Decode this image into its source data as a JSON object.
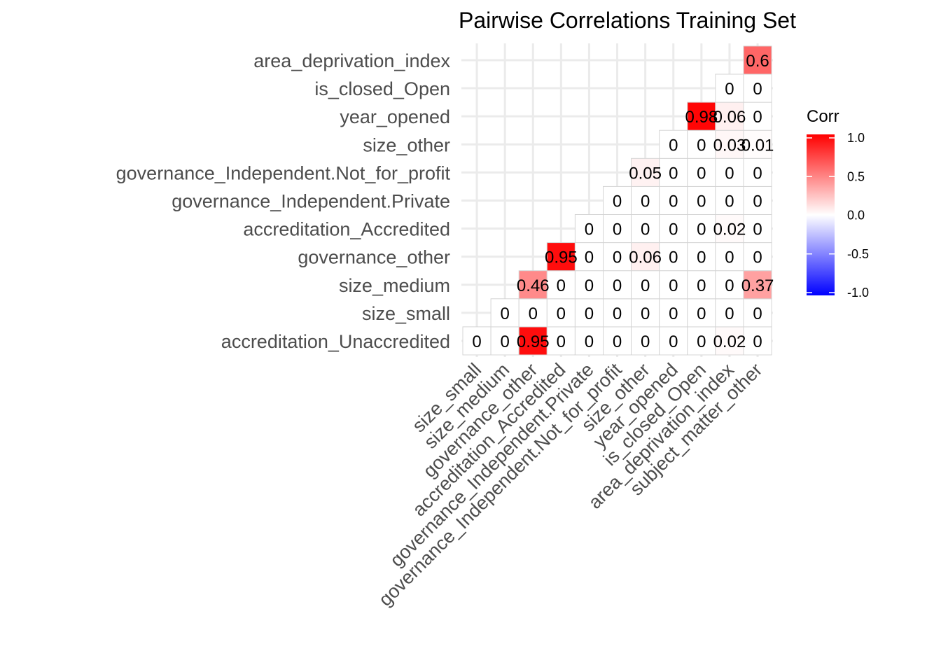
{
  "chart_data": {
    "type": "heatmap",
    "title": "Pairwise Correlations Training Set",
    "x_categories": [
      "size_small",
      "size_medium",
      "governance_other",
      "accreditation_Accredited",
      "governance_Independent.Private",
      "governance_Independent.Not_for_profit",
      "size_other",
      "year_opened",
      "is_closed_Open",
      "area_deprivation_index",
      "subject_matter_other"
    ],
    "y_categories": [
      "accreditation_Unaccredited",
      "size_small",
      "size_medium",
      "governance_other",
      "accreditation_Accredited",
      "governance_Independent.Private",
      "governance_Independent.Not_for_profit",
      "size_other",
      "year_opened",
      "is_closed_Open",
      "area_deprivation_index"
    ],
    "cells": [
      {
        "x": "size_small",
        "y": "accreditation_Unaccredited",
        "value": 0,
        "label": "0"
      },
      {
        "x": "size_medium",
        "y": "accreditation_Unaccredited",
        "value": 0,
        "label": "0"
      },
      {
        "x": "governance_other",
        "y": "accreditation_Unaccredited",
        "value": 0.95,
        "label": "0.95"
      },
      {
        "x": "accreditation_Accredited",
        "y": "accreditation_Unaccredited",
        "value": 0,
        "label": "0"
      },
      {
        "x": "governance_Independent.Private",
        "y": "accreditation_Unaccredited",
        "value": 0,
        "label": "0"
      },
      {
        "x": "governance_Independent.Not_for_profit",
        "y": "accreditation_Unaccredited",
        "value": 0,
        "label": "0"
      },
      {
        "x": "size_other",
        "y": "accreditation_Unaccredited",
        "value": 0,
        "label": "0"
      },
      {
        "x": "year_opened",
        "y": "accreditation_Unaccredited",
        "value": 0,
        "label": "0"
      },
      {
        "x": "is_closed_Open",
        "y": "accreditation_Unaccredited",
        "value": 0,
        "label": "0"
      },
      {
        "x": "area_deprivation_index",
        "y": "accreditation_Unaccredited",
        "value": 0.02,
        "label": "0.02"
      },
      {
        "x": "subject_matter_other",
        "y": "accreditation_Unaccredited",
        "value": 0,
        "label": "0"
      },
      {
        "x": "size_medium",
        "y": "size_small",
        "value": 0,
        "label": "0"
      },
      {
        "x": "governance_other",
        "y": "size_small",
        "value": 0,
        "label": "0"
      },
      {
        "x": "accreditation_Accredited",
        "y": "size_small",
        "value": 0,
        "label": "0"
      },
      {
        "x": "governance_Independent.Private",
        "y": "size_small",
        "value": 0,
        "label": "0"
      },
      {
        "x": "governance_Independent.Not_for_profit",
        "y": "size_small",
        "value": 0,
        "label": "0"
      },
      {
        "x": "size_other",
        "y": "size_small",
        "value": 0,
        "label": "0"
      },
      {
        "x": "year_opened",
        "y": "size_small",
        "value": 0,
        "label": "0"
      },
      {
        "x": "is_closed_Open",
        "y": "size_small",
        "value": 0,
        "label": "0"
      },
      {
        "x": "area_deprivation_index",
        "y": "size_small",
        "value": 0,
        "label": "0"
      },
      {
        "x": "subject_matter_other",
        "y": "size_small",
        "value": 0,
        "label": "0"
      },
      {
        "x": "governance_other",
        "y": "size_medium",
        "value": 0.46,
        "label": "0.46"
      },
      {
        "x": "accreditation_Accredited",
        "y": "size_medium",
        "value": 0,
        "label": "0"
      },
      {
        "x": "governance_Independent.Private",
        "y": "size_medium",
        "value": 0,
        "label": "0"
      },
      {
        "x": "governance_Independent.Not_for_profit",
        "y": "size_medium",
        "value": 0,
        "label": "0"
      },
      {
        "x": "size_other",
        "y": "size_medium",
        "value": 0,
        "label": "0"
      },
      {
        "x": "year_opened",
        "y": "size_medium",
        "value": 0,
        "label": "0"
      },
      {
        "x": "is_closed_Open",
        "y": "size_medium",
        "value": 0,
        "label": "0"
      },
      {
        "x": "area_deprivation_index",
        "y": "size_medium",
        "value": 0,
        "label": "0"
      },
      {
        "x": "subject_matter_other",
        "y": "size_medium",
        "value": 0.37,
        "label": "0.37"
      },
      {
        "x": "accreditation_Accredited",
        "y": "governance_other",
        "value": 0.95,
        "label": "0.95"
      },
      {
        "x": "governance_Independent.Private",
        "y": "governance_other",
        "value": 0,
        "label": "0"
      },
      {
        "x": "governance_Independent.Not_for_profit",
        "y": "governance_other",
        "value": 0,
        "label": "0"
      },
      {
        "x": "size_other",
        "y": "governance_other",
        "value": 0.06,
        "label": "0.06"
      },
      {
        "x": "year_opened",
        "y": "governance_other",
        "value": 0,
        "label": "0"
      },
      {
        "x": "is_closed_Open",
        "y": "governance_other",
        "value": 0,
        "label": "0"
      },
      {
        "x": "area_deprivation_index",
        "y": "governance_other",
        "value": 0,
        "label": "0"
      },
      {
        "x": "subject_matter_other",
        "y": "governance_other",
        "value": 0,
        "label": "0"
      },
      {
        "x": "governance_Independent.Private",
        "y": "accreditation_Accredited",
        "value": 0,
        "label": "0"
      },
      {
        "x": "governance_Independent.Not_for_profit",
        "y": "accreditation_Accredited",
        "value": 0,
        "label": "0"
      },
      {
        "x": "size_other",
        "y": "accreditation_Accredited",
        "value": 0,
        "label": "0"
      },
      {
        "x": "year_opened",
        "y": "accreditation_Accredited",
        "value": 0,
        "label": "0"
      },
      {
        "x": "is_closed_Open",
        "y": "accreditation_Accredited",
        "value": 0,
        "label": "0"
      },
      {
        "x": "area_deprivation_index",
        "y": "accreditation_Accredited",
        "value": 0.02,
        "label": "0.02"
      },
      {
        "x": "subject_matter_other",
        "y": "accreditation_Accredited",
        "value": 0,
        "label": "0"
      },
      {
        "x": "governance_Independent.Not_for_profit",
        "y": "governance_Independent.Private",
        "value": 0,
        "label": "0"
      },
      {
        "x": "size_other",
        "y": "governance_Independent.Private",
        "value": 0,
        "label": "0"
      },
      {
        "x": "year_opened",
        "y": "governance_Independent.Private",
        "value": 0,
        "label": "0"
      },
      {
        "x": "is_closed_Open",
        "y": "governance_Independent.Private",
        "value": 0,
        "label": "0"
      },
      {
        "x": "area_deprivation_index",
        "y": "governance_Independent.Private",
        "value": 0,
        "label": "0"
      },
      {
        "x": "subject_matter_other",
        "y": "governance_Independent.Private",
        "value": 0,
        "label": "0"
      },
      {
        "x": "size_other",
        "y": "governance_Independent.Not_for_profit",
        "value": 0.05,
        "label": "0.05"
      },
      {
        "x": "year_opened",
        "y": "governance_Independent.Not_for_profit",
        "value": 0,
        "label": "0"
      },
      {
        "x": "is_closed_Open",
        "y": "governance_Independent.Not_for_profit",
        "value": 0,
        "label": "0"
      },
      {
        "x": "area_deprivation_index",
        "y": "governance_Independent.Not_for_profit",
        "value": 0,
        "label": "0"
      },
      {
        "x": "subject_matter_other",
        "y": "governance_Independent.Not_for_profit",
        "value": 0,
        "label": "0"
      },
      {
        "x": "year_opened",
        "y": "size_other",
        "value": 0,
        "label": "0"
      },
      {
        "x": "is_closed_Open",
        "y": "size_other",
        "value": 0,
        "label": "0"
      },
      {
        "x": "area_deprivation_index",
        "y": "size_other",
        "value": 0.03,
        "label": "0.03"
      },
      {
        "x": "subject_matter_other",
        "y": "size_other",
        "value": 0.01,
        "label": "0.01"
      },
      {
        "x": "is_closed_Open",
        "y": "year_opened",
        "value": 0.98,
        "label": "0.98"
      },
      {
        "x": "area_deprivation_index",
        "y": "year_opened",
        "value": 0.06,
        "label": "0.06"
      },
      {
        "x": "subject_matter_other",
        "y": "year_opened",
        "value": 0,
        "label": "0"
      },
      {
        "x": "area_deprivation_index",
        "y": "is_closed_Open",
        "value": 0,
        "label": "0"
      },
      {
        "x": "subject_matter_other",
        "y": "is_closed_Open",
        "value": 0,
        "label": "0"
      },
      {
        "x": "subject_matter_other",
        "y": "area_deprivation_index",
        "value": 0.6,
        "label": "0.6"
      }
    ],
    "legend": {
      "title": "Corr",
      "position": "right",
      "range": [
        -1,
        1
      ],
      "ticks": [
        "1.0",
        "0.5",
        "0.0",
        "-0.5",
        "-1.0"
      ],
      "tick_values": [
        1,
        0.5,
        0,
        -0.5,
        -1
      ],
      "colors": {
        "low": "#0000ff",
        "mid": "#ffffff",
        "high": "#ff0000"
      }
    },
    "grid": true
  }
}
